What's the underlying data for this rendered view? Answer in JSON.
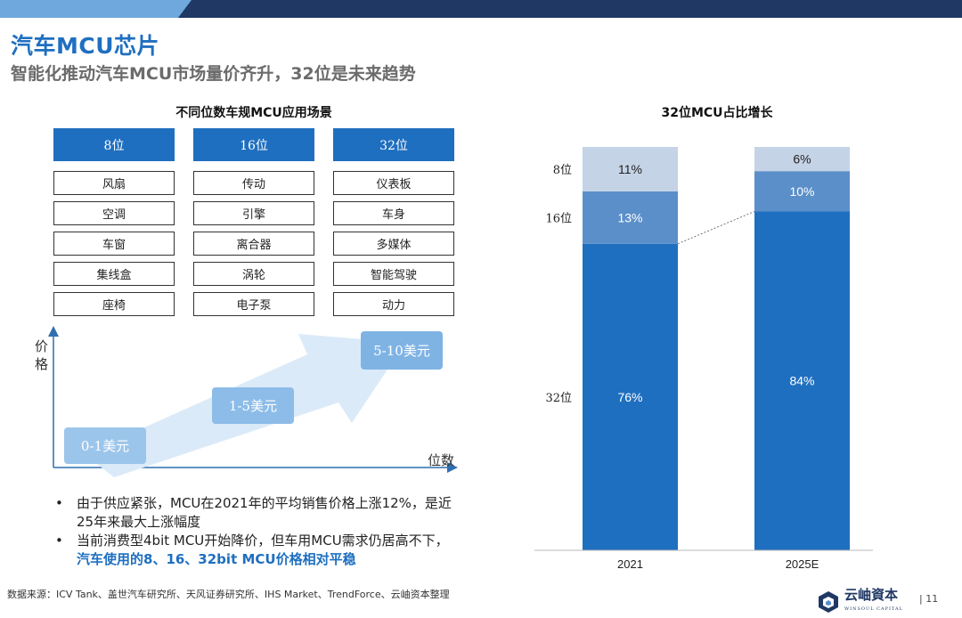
{
  "header": {
    "title": "汽车MCU芯片",
    "subtitle": "智能化推动汽车MCU市场量价齐升，32位是未来趋势"
  },
  "scenarios": {
    "title": "不同位数车规MCU应用场景",
    "columns": [
      {
        "label": "8位",
        "items": [
          "风扇",
          "空调",
          "车窗",
          "集线盒",
          "座椅"
        ]
      },
      {
        "label": "16位",
        "items": [
          "传动",
          "引擎",
          "离合器",
          "涡轮",
          "电子泵"
        ]
      },
      {
        "label": "32位",
        "items": [
          "仪表板",
          "车身",
          "多媒体",
          "智能驾驶",
          "动力"
        ]
      }
    ]
  },
  "price_diagram": {
    "y_label": "价格",
    "x_label": "位数",
    "tiers": [
      "0-1美元",
      "1-5美元",
      "5-10美元"
    ]
  },
  "bullets": {
    "b1": "由于供应紧张，MCU在2021年的平均销售价格上涨12%，是近25年来最大上涨幅度",
    "b2_text": "当前消费型4bit MCU开始降价，但车用MCU需求仍居高不下，",
    "b2_highlight": "汽车使用的8、16、32bit MCU价格相对平稳"
  },
  "chart_data": {
    "type": "bar",
    "title": "32位MCU占比增长",
    "categories": [
      "2021",
      "2025E"
    ],
    "stacked": true,
    "series": [
      {
        "name": "32位",
        "values": [
          76,
          84
        ],
        "labels": [
          "76%",
          "84%"
        ],
        "color": "#1f6fc0"
      },
      {
        "name": "16位",
        "values": [
          13,
          10
        ],
        "labels": [
          "13%",
          "10%"
        ],
        "color": "#5b8fc9"
      },
      {
        "name": "8位",
        "values": [
          11,
          6
        ],
        "labels": [
          "11%",
          "6%"
        ],
        "color": "#c5d3e6"
      }
    ],
    "ylim": [
      0,
      100
    ],
    "series_label_position": "left"
  },
  "footer": {
    "source": "数据来源：ICV Tank、盖世汽车研究所、天风证券研究所、IHS Market、TrendForce、云岫资本整理",
    "logo_text": "云岫資本",
    "logo_sub": "WINSOUL CAPITAL",
    "page_number": "| 11"
  }
}
